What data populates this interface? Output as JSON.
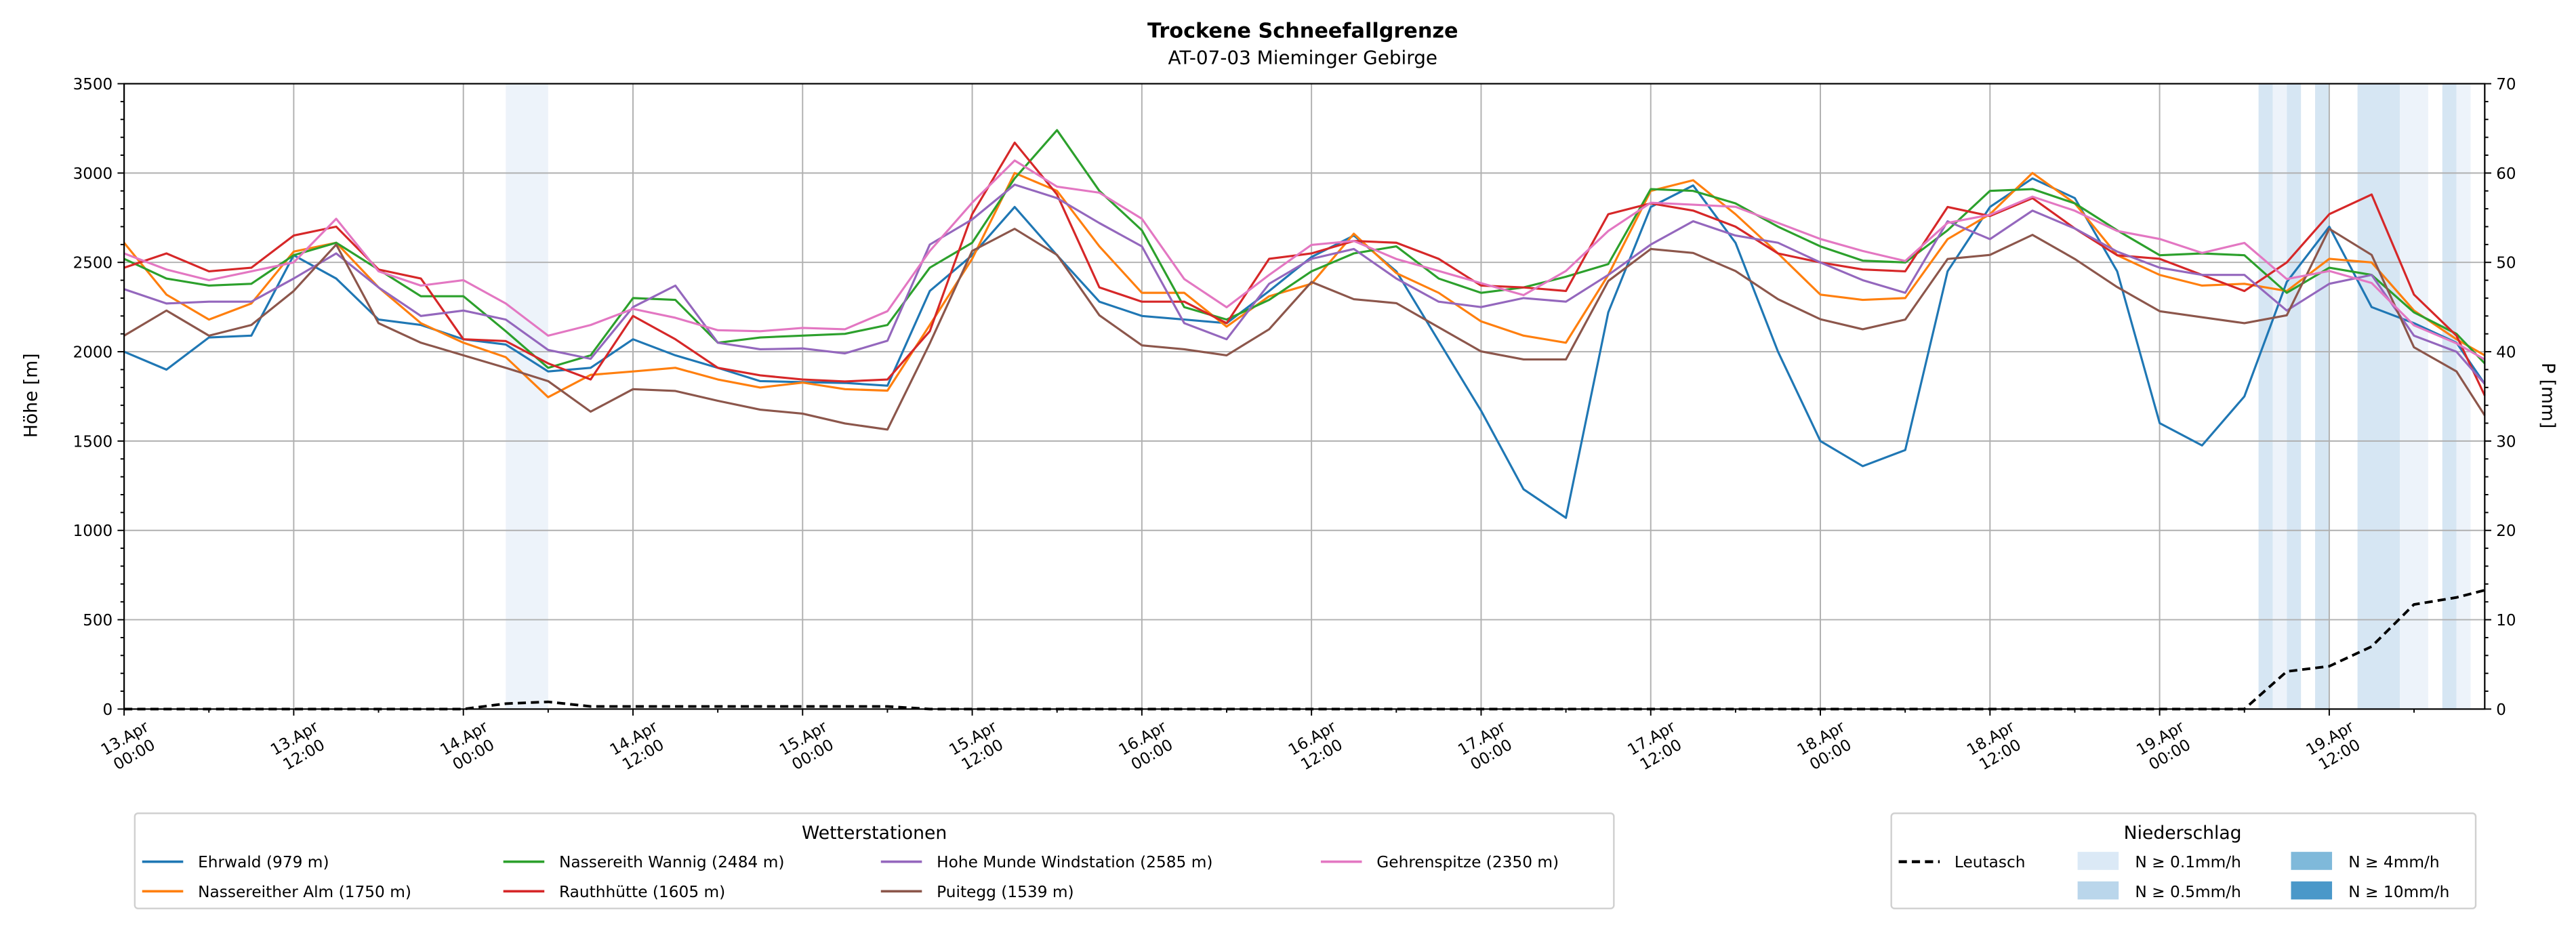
{
  "chart_data": {
    "type": "line",
    "title": "Trockene Schneefallgrenze",
    "subtitle": "AT-07-03 Mieminger Gebirge",
    "ylabel": "Höhe [m]",
    "ylabel_right": "P [mm]",
    "ylim": [
      0,
      3500
    ],
    "ylim_right": [
      0,
      70
    ],
    "grid": true,
    "yticks": [
      "0",
      "500",
      "1000",
      "1500",
      "2000",
      "2500",
      "3000",
      "3500"
    ],
    "yticks_right": [
      "0",
      "10",
      "20",
      "30",
      "40",
      "50",
      "60",
      "70"
    ],
    "xticks": [
      {
        "hour": 0,
        "l1": "13.Apr",
        "l2": "00:00"
      },
      {
        "hour": 12,
        "l1": "13.Apr",
        "l2": "12:00"
      },
      {
        "hour": 24,
        "l1": "14.Apr",
        "l2": "00:00"
      },
      {
        "hour": 36,
        "l1": "14.Apr",
        "l2": "12:00"
      },
      {
        "hour": 48,
        "l1": "15.Apr",
        "l2": "00:00"
      },
      {
        "hour": 60,
        "l1": "15.Apr",
        "l2": "12:00"
      },
      {
        "hour": 72,
        "l1": "16.Apr",
        "l2": "00:00"
      },
      {
        "hour": 84,
        "l1": "16.Apr",
        "l2": "12:00"
      },
      {
        "hour": 96,
        "l1": "17.Apr",
        "l2": "00:00"
      },
      {
        "hour": 108,
        "l1": "17.Apr",
        "l2": "12:00"
      },
      {
        "hour": 120,
        "l1": "18.Apr",
        "l2": "00:00"
      },
      {
        "hour": 132,
        "l1": "18.Apr",
        "l2": "12:00"
      },
      {
        "hour": 144,
        "l1": "19.Apr",
        "l2": "00:00"
      },
      {
        "hour": 156,
        "l1": "19.Apr",
        "l2": "12:00"
      }
    ],
    "xlim_hours": [
      0,
      167
    ],
    "x_hours": [
      0,
      3,
      6,
      9,
      12,
      15,
      18,
      21,
      24,
      27,
      30,
      33,
      36,
      39,
      42,
      45,
      48,
      51,
      54,
      57,
      60,
      63,
      66,
      69,
      72,
      75,
      78,
      81,
      84,
      87,
      90,
      93,
      96,
      99,
      102,
      105,
      108,
      111,
      114,
      117,
      120,
      123,
      126,
      129,
      132,
      135,
      138,
      141,
      144,
      147,
      150,
      153,
      156,
      159,
      162,
      165,
      167
    ],
    "series": [
      {
        "name": "Ehrwald (979 m)",
        "color": "#1f77b4",
        "values": [
          2000,
          1900,
          2080,
          2090,
          2540,
          2410,
          2180,
          2150,
          2070,
          2040,
          1890,
          1910,
          2070,
          1980,
          1910,
          1835,
          1830,
          1825,
          1810,
          2340,
          2540,
          2810,
          2540,
          2280,
          2200,
          2180,
          2160,
          2340,
          2530,
          2650,
          2450,
          2060,
          1670,
          1230,
          1070,
          2220,
          2810,
          2930,
          2610,
          2000,
          1500,
          1360,
          1450,
          2450,
          2810,
          2970,
          2860,
          2450,
          1600,
          1475,
          1750,
          2390,
          2700,
          2250,
          2160,
          2050,
          1820
        ]
      },
      {
        "name": "Nassereither Alm (1750 m)",
        "color": "#ff7f0e",
        "values": [
          2610,
          2320,
          2180,
          2270,
          2560,
          2610,
          2360,
          2160,
          2050,
          1970,
          1745,
          1870,
          1890,
          1910,
          1845,
          1800,
          1827,
          1790,
          1782,
          2150,
          2520,
          3000,
          2900,
          2590,
          2330,
          2330,
          2140,
          2310,
          2380,
          2660,
          2440,
          2330,
          2170,
          2090,
          2050,
          2430,
          2900,
          2960,
          2770,
          2550,
          2320,
          2290,
          2300,
          2630,
          2770,
          3000,
          2830,
          2540,
          2430,
          2370,
          2380,
          2340,
          2520,
          2500,
          2230,
          2070,
          1980
        ]
      },
      {
        "name": "Nassereith Wannig (2484 m)",
        "color": "#2ca02c",
        "values": [
          2520,
          2410,
          2370,
          2380,
          2540,
          2610,
          2460,
          2310,
          2310,
          2115,
          1910,
          1980,
          2300,
          2290,
          2050,
          2080,
          2090,
          2100,
          2150,
          2470,
          2610,
          2970,
          3240,
          2900,
          2680,
          2250,
          2180,
          2290,
          2450,
          2550,
          2590,
          2410,
          2330,
          2360,
          2420,
          2490,
          2910,
          2900,
          2830,
          2700,
          2590,
          2510,
          2500,
          2680,
          2900,
          2910,
          2830,
          2680,
          2540,
          2550,
          2540,
          2330,
          2470,
          2430,
          2220,
          2100,
          1935
        ]
      },
      {
        "name": "Rauthhütte (1605 m)",
        "color": "#d62728",
        "values": [
          2470,
          2550,
          2450,
          2470,
          2650,
          2700,
          2460,
          2410,
          2070,
          2060,
          1935,
          1845,
          2200,
          2070,
          1910,
          1868,
          1845,
          1834,
          1845,
          2115,
          2770,
          3170,
          2880,
          2360,
          2280,
          2280,
          2160,
          2520,
          2550,
          2620,
          2610,
          2520,
          2370,
          2360,
          2340,
          2770,
          2830,
          2790,
          2700,
          2550,
          2500,
          2460,
          2450,
          2810,
          2760,
          2860,
          2690,
          2540,
          2520,
          2430,
          2340,
          2500,
          2770,
          2880,
          2320,
          2090,
          1755
        ]
      },
      {
        "name": "Hohe Munde Windstation (2585 m)",
        "color": "#9467bd",
        "values": [
          2350,
          2270,
          2280,
          2280,
          2410,
          2550,
          2360,
          2200,
          2230,
          2180,
          2010,
          1960,
          2250,
          2370,
          2050,
          2014,
          2018,
          1991,
          2061,
          2600,
          2740,
          2935,
          2860,
          2720,
          2590,
          2160,
          2070,
          2380,
          2520,
          2575,
          2410,
          2280,
          2250,
          2300,
          2280,
          2430,
          2600,
          2730,
          2650,
          2610,
          2500,
          2400,
          2330,
          2730,
          2630,
          2790,
          2690,
          2560,
          2470,
          2430,
          2430,
          2230,
          2380,
          2430,
          2090,
          2000,
          1820
        ]
      },
      {
        "name": "Puitegg (1539 m)",
        "color": "#8c564b",
        "values": [
          2090,
          2230,
          2090,
          2150,
          2340,
          2600,
          2160,
          2050,
          1980,
          1910,
          1835,
          1665,
          1790,
          1780,
          1725,
          1676,
          1654,
          1598,
          1564,
          2047,
          2564,
          2688,
          2542,
          2204,
          2036,
          2014,
          1980,
          2126,
          2390,
          2294,
          2272,
          2137,
          2002,
          1957,
          1957,
          2396,
          2575,
          2553,
          2452,
          2294,
          2182,
          2126,
          2180,
          2519,
          2542,
          2654,
          2519,
          2362,
          2227,
          2193,
          2160,
          2204,
          2688,
          2542,
          2025,
          1890,
          1643
        ]
      },
      {
        "name": "Gehrenspitze (2350 m)",
        "color": "#e377c2",
        "values": [
          2550,
          2460,
          2400,
          2450,
          2500,
          2744,
          2450,
          2370,
          2400,
          2270,
          2090,
          2150,
          2240,
          2190,
          2120,
          2115,
          2133,
          2126,
          2227,
          2564,
          2834,
          3070,
          2924,
          2890,
          2744,
          2407,
          2249,
          2430,
          2598,
          2620,
          2519,
          2452,
          2384,
          2317,
          2452,
          2676,
          2834,
          2823,
          2811,
          2721,
          2631,
          2564,
          2508,
          2721,
          2766,
          2868,
          2789,
          2676,
          2631,
          2553,
          2609,
          2407,
          2452,
          2385,
          2148,
          2047,
          1957
        ]
      }
    ],
    "precip_series": {
      "name": "Leutasch",
      "color": "#000000",
      "axis": "right",
      "values": [
        0,
        0,
        0,
        0,
        0,
        0,
        0,
        0,
        0,
        0.6,
        0.8,
        0.3,
        0.3,
        0.3,
        0.3,
        0.3,
        0.3,
        0.3,
        0.3,
        0,
        0,
        0,
        0,
        0,
        0,
        0,
        0,
        0,
        0,
        0,
        0,
        0,
        0,
        0,
        0,
        0,
        0,
        0,
        0,
        0,
        0,
        0,
        0,
        0,
        0,
        0,
        0,
        0,
        0,
        0,
        0,
        4.2,
        4.8,
        7.0,
        11.7,
        12.5,
        13.3
      ]
    },
    "precip_bands": [
      {
        "start_hour": 27,
        "end_hour": 30,
        "class": "N ≥ 0.1mm/h"
      },
      {
        "start_hour": 151,
        "end_hour": 152,
        "class": "N ≥ 0.5mm/h"
      },
      {
        "start_hour": 152,
        "end_hour": 153,
        "class": "N ≥ 0.1mm/h"
      },
      {
        "start_hour": 153,
        "end_hour": 154,
        "class": "N ≥ 0.5mm/h"
      },
      {
        "start_hour": 155,
        "end_hour": 156,
        "class": "N ≥ 0.5mm/h"
      },
      {
        "start_hour": 158,
        "end_hour": 161,
        "class": "N ≥ 0.5mm/h"
      },
      {
        "start_hour": 161,
        "end_hour": 163,
        "class": "N ≥ 0.1mm/h"
      },
      {
        "start_hour": 164,
        "end_hour": 165,
        "class": "N ≥ 0.5mm/h"
      },
      {
        "start_hour": 165,
        "end_hour": 166,
        "class": "N ≥ 0.1mm/h"
      }
    ],
    "band_colors": {
      "N ≥ 0.1mm/h": "#edf3fa",
      "N ≥ 0.5mm/h": "#d6e6f3"
    },
    "legend_stations": {
      "title": "Wetterstationen",
      "placement": "bottom-left"
    },
    "legend_precip": {
      "title": "Niederschlag",
      "placement": "bottom-right",
      "line_label": "Leutasch",
      "classes": [
        {
          "label": "N ≥ 0.1mm/h",
          "color": "#dbe9f6"
        },
        {
          "label": "N ≥ 0.5mm/h",
          "color": "#bad6eb"
        },
        {
          "label": "N ≥ 4mm/h",
          "color": "#7fb9da"
        },
        {
          "label": "N ≥ 10mm/h",
          "color": "#4a98c9"
        }
      ]
    }
  }
}
